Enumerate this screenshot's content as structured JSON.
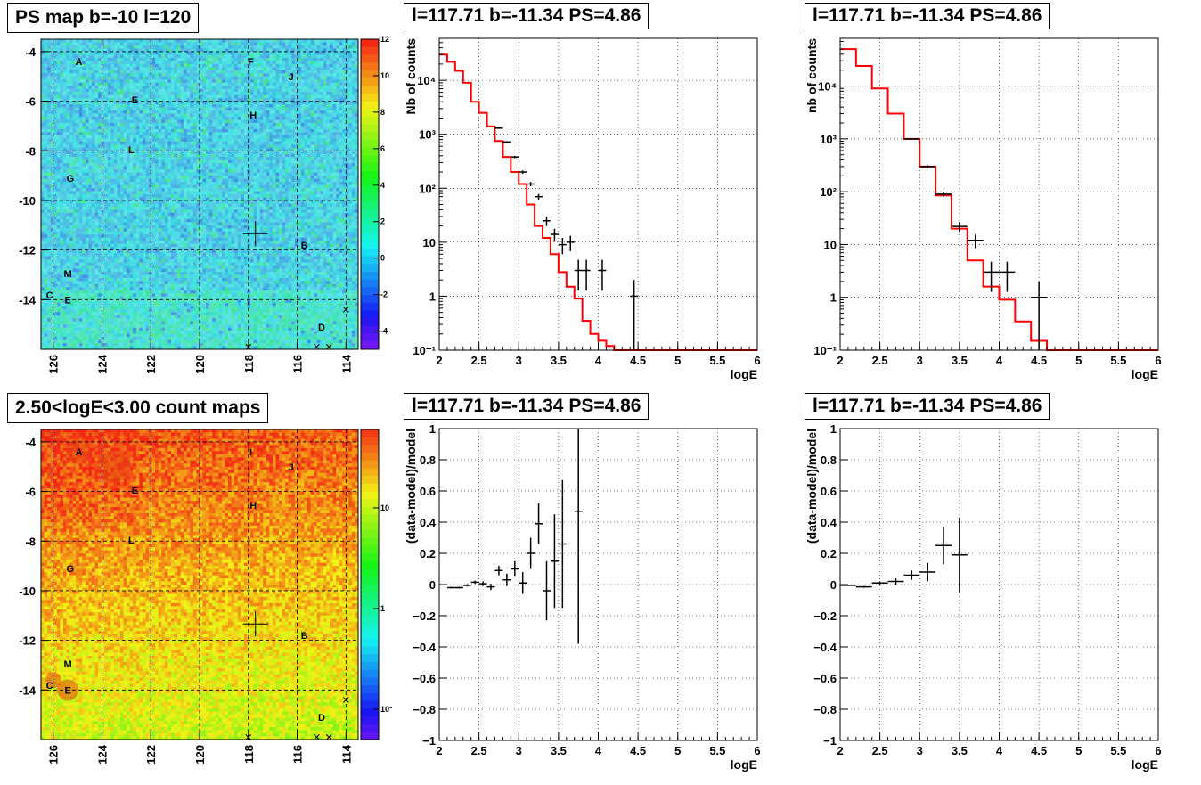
{
  "map_panels": [
    {
      "title": "PS map b=-10 l=120",
      "scale": "linear",
      "x_ticks": [
        "126",
        "124",
        "122",
        "120",
        "118",
        "116",
        "114"
      ],
      "y_ticks": [
        "-4",
        "-6",
        "-8",
        "-10",
        "-12",
        "-14"
      ],
      "colorbar": {
        "ticks": [
          "12",
          "10",
          "8",
          "6",
          "4",
          "2",
          "0",
          "-2",
          "-4"
        ]
      }
    },
    {
      "title": "2.50<logE<3.00 count maps",
      "scale": "log",
      "x_ticks": [
        "126",
        "124",
        "122",
        "120",
        "118",
        "116",
        "114"
      ],
      "y_ticks": [
        "-4",
        "-6",
        "-8",
        "-10",
        "-12",
        "-14"
      ],
      "colorbar": {
        "ticks": [
          "10",
          "1",
          "10⁻¹"
        ]
      }
    }
  ],
  "map_labels": [
    "A",
    "F",
    "J",
    "E",
    "H",
    "L",
    "G",
    "B",
    "M",
    "C",
    "E",
    "D",
    "I"
  ],
  "chart_data": [
    {
      "type": "map",
      "title": "PS map b=-10 l=120",
      "xlim": [
        126.5,
        113.5
      ],
      "ylim": [
        -16,
        -3.5
      ],
      "zlim": [
        -5,
        12
      ],
      "marker": {
        "l": 117.71,
        "b": -11.34
      },
      "sources": [
        {
          "label": "A",
          "l": 124.95,
          "b": -4.4
        },
        {
          "label": "F",
          "l": 117.9,
          "b": -4.4
        },
        {
          "label": "J",
          "l": 116.25,
          "b": -5.0
        },
        {
          "label": "E",
          "l": 122.65,
          "b": -5.95
        },
        {
          "label": "H",
          "l": 117.8,
          "b": -6.55
        },
        {
          "label": "L",
          "l": 122.8,
          "b": -7.95
        },
        {
          "label": "G",
          "l": 125.3,
          "b": -9.1
        },
        {
          "label": "B",
          "l": 115.7,
          "b": -11.8
        },
        {
          "label": "M",
          "l": 125.4,
          "b": -12.95
        },
        {
          "label": "C",
          "l": 126.15,
          "b": -13.8
        },
        {
          "label": "E",
          "l": 125.4,
          "b": -14.0
        },
        {
          "label": "D",
          "l": 115.0,
          "b": -15.1
        }
      ]
    },
    {
      "type": "map",
      "title": "2.50<logE<3.00 count maps",
      "xlim": [
        126.5,
        113.5
      ],
      "ylim": [
        -16,
        -3.5
      ],
      "zlim": [
        0.05,
        60
      ],
      "marker": {
        "l": 117.71,
        "b": -11.34
      },
      "sources": [
        {
          "label": "A",
          "l": 124.95,
          "b": -4.4
        },
        {
          "label": "I",
          "l": 117.9,
          "b": -4.4
        },
        {
          "label": "J",
          "l": 116.25,
          "b": -5.0
        },
        {
          "label": "E",
          "l": 122.65,
          "b": -5.95
        },
        {
          "label": "H",
          "l": 117.8,
          "b": -6.55
        },
        {
          "label": "L",
          "l": 122.8,
          "b": -7.95
        },
        {
          "label": "G",
          "l": 125.3,
          "b": -9.1
        },
        {
          "label": "B",
          "l": 115.7,
          "b": -11.8
        },
        {
          "label": "M",
          "l": 125.4,
          "b": -12.95
        },
        {
          "label": "C",
          "l": 126.15,
          "b": -13.8
        },
        {
          "label": "E",
          "l": 125.4,
          "b": -14.0
        },
        {
          "label": "D",
          "l": 115.0,
          "b": -15.1
        }
      ]
    },
    {
      "type": "line",
      "title": "l=117.71 b=-11.34 PS=4.86",
      "xlabel": "logE",
      "ylabel": "Nb of counts",
      "yscale": "log",
      "xlim": [
        2,
        6
      ],
      "ylim": [
        0.1,
        60000
      ],
      "x_ticks": [
        "2",
        "2.5",
        "3",
        "3.5",
        "4",
        "4.5",
        "5",
        "5.5",
        "6"
      ],
      "y_ticks": [
        {
          "v": 10000,
          "t": "10⁴"
        },
        {
          "v": 1000,
          "t": "10³"
        },
        {
          "v": 100,
          "t": "10²"
        },
        {
          "v": 10,
          "t": "10"
        },
        {
          "v": 1,
          "t": "1"
        },
        {
          "v": 0.1,
          "t": "10⁻¹"
        }
      ],
      "model_edges": [
        2.0,
        2.1,
        2.2,
        2.3,
        2.4,
        2.5,
        2.6,
        2.7,
        2.8,
        2.9,
        3.0,
        3.1,
        3.2,
        3.3,
        3.4,
        3.5,
        3.6,
        3.7,
        3.8,
        3.9,
        4.0,
        4.1,
        4.2,
        4.3,
        6.0
      ],
      "model_values": [
        30000,
        22000,
        15000,
        9000,
        4000,
        2500,
        1400,
        750,
        380,
        200,
        120,
        50,
        20,
        12,
        6,
        2.8,
        1.5,
        0.9,
        0.35,
        0.2,
        0.15,
        0.12,
        0.1,
        0.02
      ],
      "data": [
        {
          "x": 2.75,
          "xe": 0.05,
          "y": 1300
        },
        {
          "x": 2.85,
          "xe": 0.05,
          "y": 720
        },
        {
          "x": 2.95,
          "xe": 0.05,
          "y": 380
        },
        {
          "x": 3.05,
          "xe": 0.05,
          "y": 200
        },
        {
          "x": 3.15,
          "xe": 0.05,
          "y": 120
        },
        {
          "x": 3.25,
          "xe": 0.05,
          "y": 70
        },
        {
          "x": 3.35,
          "xe": 0.05,
          "y": 25
        },
        {
          "x": 3.45,
          "xe": 0.05,
          "y": 14
        },
        {
          "x": 3.55,
          "xe": 0.05,
          "y": 9
        },
        {
          "x": 3.65,
          "xe": 0.05,
          "y": 10
        },
        {
          "x": 3.75,
          "xe": 0.05,
          "y": 3
        },
        {
          "x": 3.85,
          "xe": 0.05,
          "y": 3
        },
        {
          "x": 4.05,
          "xe": 0.05,
          "y": 3
        },
        {
          "x": 4.45,
          "xe": 0.05,
          "y": 1
        }
      ]
    },
    {
      "type": "line",
      "title": "l=117.71 b=-11.34 PS=4.86",
      "xlabel": "logE",
      "ylabel": "nb of counts",
      "yscale": "log",
      "xlim": [
        2,
        6
      ],
      "ylim": [
        0.1,
        80000
      ],
      "x_ticks": [
        "2",
        "2.5",
        "3",
        "3.5",
        "4",
        "4.5",
        "5",
        "5.5",
        "6"
      ],
      "y_ticks": [
        {
          "v": 10000,
          "t": "10⁴"
        },
        {
          "v": 1000,
          "t": "10³"
        },
        {
          "v": 100,
          "t": "10²"
        },
        {
          "v": 10,
          "t": "10"
        },
        {
          "v": 1,
          "t": "1"
        },
        {
          "v": 0.1,
          "t": "10⁻¹"
        }
      ],
      "model_edges": [
        2.0,
        2.2,
        2.4,
        2.6,
        2.8,
        3.0,
        3.2,
        3.4,
        3.6,
        3.8,
        4.0,
        4.2,
        4.4,
        4.6,
        6.0
      ],
      "model_values": [
        50000,
        24000,
        9000,
        3000,
        1000,
        300,
        85,
        20,
        5,
        1.6,
        0.9,
        0.35,
        0.15,
        0.02
      ],
      "data": [
        {
          "x": 2.9,
          "xe": 0.1,
          "y": 1000
        },
        {
          "x": 3.1,
          "xe": 0.1,
          "y": 300
        },
        {
          "x": 3.3,
          "xe": 0.1,
          "y": 90
        },
        {
          "x": 3.5,
          "xe": 0.1,
          "y": 22
        },
        {
          "x": 3.7,
          "xe": 0.1,
          "y": 12
        },
        {
          "x": 3.9,
          "xe": 0.1,
          "y": 3
        },
        {
          "x": 4.1,
          "xe": 0.1,
          "y": 3
        },
        {
          "x": 4.5,
          "xe": 0.1,
          "y": 1
        }
      ]
    },
    {
      "type": "scatter",
      "title": "l=117.71 b=-11.34 PS=4.86",
      "xlabel": "logE",
      "ylabel": "(data-model)/model",
      "xlim": [
        2,
        6
      ],
      "ylim": [
        -1,
        1
      ],
      "x_ticks": [
        "2",
        "2.5",
        "3",
        "3.5",
        "4",
        "4.5",
        "5",
        "5.5",
        "6"
      ],
      "y_ticks": [
        "1",
        "0.8",
        "0.6",
        "0.4",
        "0.2",
        "0",
        "−0.2",
        "−0.4",
        "−0.6",
        "−0.8",
        "−1"
      ],
      "data": [
        {
          "x": 2.15,
          "y": -0.02,
          "ye": 0.005
        },
        {
          "x": 2.25,
          "y": -0.02,
          "ye": 0.006
        },
        {
          "x": 2.35,
          "y": -0.005,
          "ye": 0.008
        },
        {
          "x": 2.45,
          "y": 0.015,
          "ye": 0.01
        },
        {
          "x": 2.55,
          "y": 0.005,
          "ye": 0.015
        },
        {
          "x": 2.65,
          "y": -0.015,
          "ye": 0.02
        },
        {
          "x": 2.75,
          "y": 0.09,
          "ye": 0.03
        },
        {
          "x": 2.85,
          "y": 0.03,
          "ye": 0.04
        },
        {
          "x": 2.95,
          "y": 0.1,
          "ye": 0.05
        },
        {
          "x": 3.05,
          "y": 0.01,
          "ye": 0.07
        },
        {
          "x": 3.15,
          "y": 0.2,
          "ye": 0.1
        },
        {
          "x": 3.25,
          "y": 0.39,
          "ye": 0.13
        },
        {
          "x": 3.35,
          "y": -0.04,
          "ye": 0.19
        },
        {
          "x": 3.45,
          "y": 0.15,
          "ye": 0.3
        },
        {
          "x": 3.55,
          "y": 0.26,
          "ye": 0.41
        },
        {
          "x": 3.75,
          "y": 0.47,
          "ye": 0.85
        }
      ]
    },
    {
      "type": "scatter",
      "title": "l=117.71 b=-11.34 PS=4.86",
      "xlabel": "logE",
      "ylabel": "(data-model)/model",
      "xlim": [
        2,
        6
      ],
      "ylim": [
        -1,
        1
      ],
      "x_ticks": [
        "2",
        "2.5",
        "3",
        "3.5",
        "4",
        "4.5",
        "5",
        "5.5",
        "6"
      ],
      "y_ticks": [
        "1",
        "0.8",
        "0.6",
        "0.4",
        "0.2",
        "0",
        "−0.2",
        "−0.4",
        "−0.6",
        "−0.8",
        "−1"
      ],
      "data": [
        {
          "x": 2.1,
          "y": -0.005,
          "ye": 0.004
        },
        {
          "x": 2.3,
          "y": -0.015,
          "ye": 0.006
        },
        {
          "x": 2.5,
          "y": 0.01,
          "ye": 0.01
        },
        {
          "x": 2.7,
          "y": 0.02,
          "ye": 0.02
        },
        {
          "x": 2.9,
          "y": 0.06,
          "ye": 0.03
        },
        {
          "x": 3.1,
          "y": 0.08,
          "ye": 0.06
        },
        {
          "x": 3.3,
          "y": 0.25,
          "ye": 0.12
        },
        {
          "x": 3.5,
          "y": 0.19,
          "ye": 0.24
        }
      ]
    }
  ],
  "colors": {
    "model": "#ff0000",
    "data": "#000000",
    "grid": "#000000"
  }
}
